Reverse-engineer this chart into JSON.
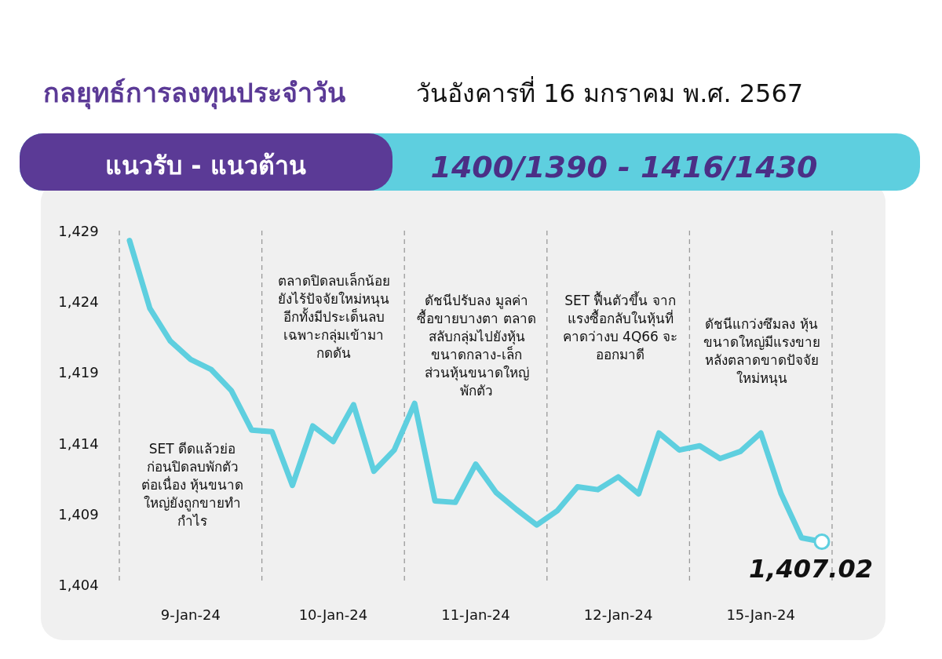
{
  "chart_data": {
    "type": "line",
    "title": "กลยุทธ์การลงทุนประจำวัน",
    "subtitle": "วันอังคารที่ 16 มกราคม พ.ศ. 2567",
    "annotations": [
      "แนวรับ - แนวต้าน",
      "1400/1390 - 1416/1430",
      "SET ดีดแล้วย่อ\nก่อนปิดลบพักตัว\nต่อเนื่อง หุ้นขนาด\nใหญ่ยังถูกขายทำ\nกำไร",
      "ตลาดปิดลบเล็กน้อย\nยังไร้ปัจจัยใหม่หนุน\nอีกทั้งมีประเด็นลบ\nเฉพาะกลุ่มเข้ามา\nกดดัน",
      "ดัชนีปรับลง มูลค่า\nซื้อขายบางตา ตลาด\nสลับกลุ่มไปยังหุ้น\nขนาดกลาง-เล็ก\nส่วนหุ้นขนาดใหญ่\nพักตัว",
      "SET ฟื้นตัวขึ้น จาก\nแรงซื้อกลับในหุ้นที่\nคาดว่างบ 4Q66 จะ\nออกมาดี",
      "ดัชนีแกว่งซึมลง หุ้น\nขนาดใหญ่มีแรงขาย\nหลังตลาดขาดปัจจัย\nใหม่หนุน"
    ],
    "categories": [
      null,
      null,
      null,
      "9-Jan-24",
      null,
      null,
      null,
      null,
      null,
      null,
      "10-Jan-24",
      null,
      null,
      null,
      null,
      null,
      null,
      "11-Jan-24",
      null,
      null,
      null,
      null,
      null,
      null,
      "12-Jan-24",
      null,
      null,
      null,
      null,
      null,
      null,
      "15-Jan-24",
      null,
      null,
      null
    ],
    "series": [
      {
        "color": "#5ecfdf",
        "values": [
          1428.3,
          1423.5,
          1421.2,
          1419.9,
          1419.2,
          1417.7,
          1414.9,
          1414.8,
          1411.0,
          1415.2,
          1414.1,
          1416.7,
          1412.0,
          1413.5,
          1416.8,
          1409.9,
          1409.8,
          1412.5,
          1410.5,
          1409.3,
          1408.2,
          1409.2,
          1410.9,
          1410.7,
          1411.6,
          1410.4,
          1414.7,
          1413.5,
          1413.8,
          1412.9,
          1413.4,
          1414.7,
          1410.4,
          1407.3,
          1407.02
        ],
        "value_labels": [
          null,
          null,
          null,
          null,
          null,
          null,
          null,
          null,
          null,
          null,
          null,
          null,
          null,
          null,
          null,
          null,
          null,
          null,
          null,
          null,
          null,
          null,
          null,
          null,
          null,
          null,
          null,
          null,
          null,
          null,
          null,
          null,
          null,
          null,
          "1,407.02"
        ]
      }
    ],
    "ylim": [
      1404,
      1429
    ],
    "yticks": [
      {
        "value": 1404,
        "label": "1,404"
      },
      {
        "value": 1409,
        "label": "1,409"
      },
      {
        "value": 1414,
        "label": "1,414"
      },
      {
        "value": 1419,
        "label": "1,419"
      },
      {
        "value": 1424,
        "label": "1,424"
      },
      {
        "value": 1429,
        "label": "1,429"
      }
    ],
    "grid": false,
    "line_style": "solid"
  }
}
